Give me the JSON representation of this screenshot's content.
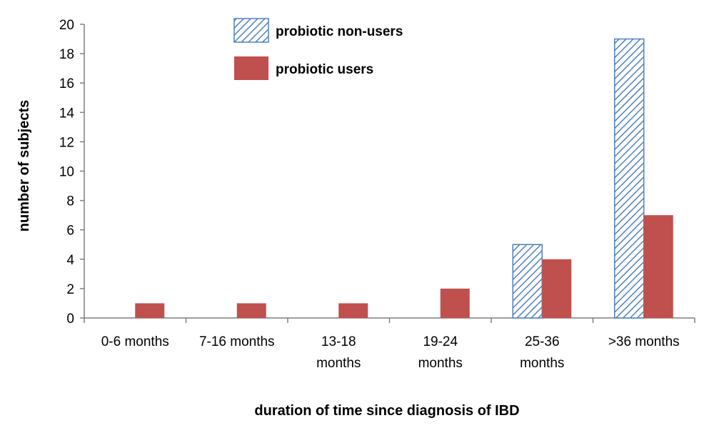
{
  "chart_data": {
    "type": "bar",
    "title": "",
    "xlabel": "duration  of time since diagnosis  of IBD",
    "ylabel": "number  of subjects",
    "ylim": [
      0,
      20
    ],
    "yticks": [
      0,
      2,
      4,
      6,
      8,
      10,
      12,
      14,
      16,
      18,
      20
    ],
    "grid": false,
    "legend_position": "top-center",
    "categories": [
      [
        "0-6 months"
      ],
      [
        "7-16 months"
      ],
      [
        "13-18",
        "months"
      ],
      [
        "19-24",
        "months"
      ],
      [
        "25-36",
        "months"
      ],
      [
        ">36 months"
      ]
    ],
    "series": [
      {
        "name": "probiotic non-users",
        "values": [
          0,
          0,
          0,
          0,
          5,
          19
        ],
        "pattern": "diagonal-hatch",
        "color": "#4f81bd"
      },
      {
        "name": "probiotic users",
        "values": [
          1,
          1,
          1,
          2,
          4,
          7
        ],
        "pattern": "solid",
        "color": "#c0504d"
      }
    ]
  }
}
